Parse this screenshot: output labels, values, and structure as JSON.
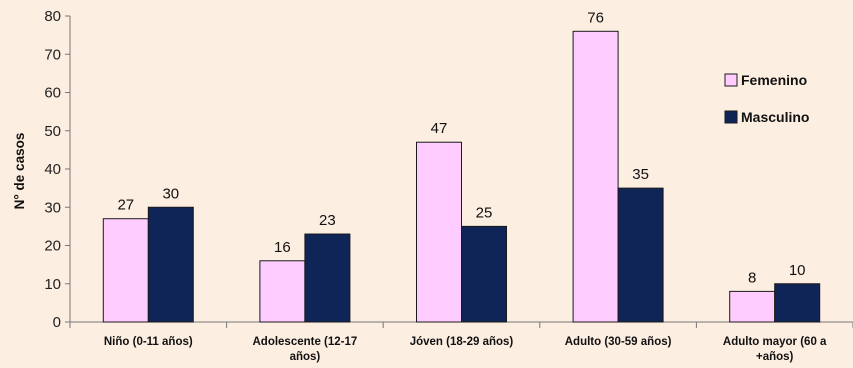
{
  "chart_data": {
    "type": "bar",
    "title": "",
    "ylabel": "N° de casos",
    "xlabel": "",
    "ylim": [
      0,
      80
    ],
    "yticks": [
      0,
      10,
      20,
      30,
      40,
      50,
      60,
      70,
      80
    ],
    "grid": false,
    "legend_position": "right",
    "categories": [
      [
        "Niño (0-11 años)"
      ],
      [
        "Adolescente (12-17",
        "años)"
      ],
      [
        "Jóven (18-29 años)"
      ],
      [
        "Adulto (30-59 años)"
      ],
      [
        "Adulto mayor (60 a",
        "+años)"
      ]
    ],
    "series": [
      {
        "name": "Femenino",
        "color": "#ffccff",
        "values": [
          27,
          16,
          47,
          76,
          8
        ]
      },
      {
        "name": "Masculino",
        "color": "#0f2457",
        "values": [
          30,
          23,
          25,
          35,
          10
        ]
      }
    ]
  }
}
